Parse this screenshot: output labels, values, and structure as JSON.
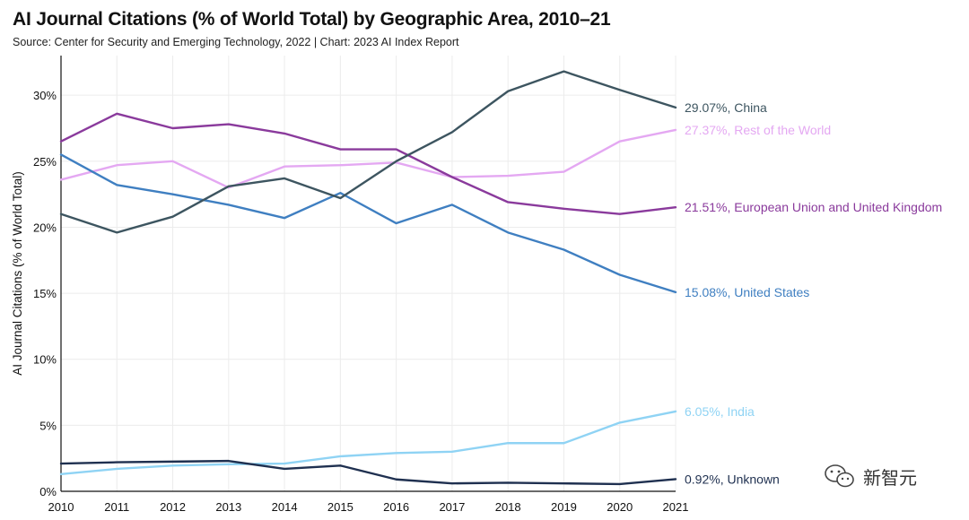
{
  "header": {
    "title": "AI Journal Citations (% of World Total) by Geographic Area, 2010–21",
    "subtitle": "Source: Center for Security and Emerging Technology, 2022 | Chart: 2023 AI Index Report"
  },
  "watermark": {
    "text": "新智元",
    "icon": "wechat-logo-icon"
  },
  "chart_data": {
    "type": "line",
    "title": "AI Journal Citations (% of World Total) by Geographic Area, 2010–21",
    "xlabel": "",
    "ylabel": "AI Journal Citations (% of World Total)",
    "x": [
      2010,
      2011,
      2012,
      2013,
      2014,
      2015,
      2016,
      2017,
      2018,
      2019,
      2020,
      2021
    ],
    "ylim": [
      0,
      33
    ],
    "yticks": [
      0,
      5,
      10,
      15,
      20,
      25,
      30
    ],
    "ytick_labels": [
      "0%",
      "5%",
      "10%",
      "15%",
      "20%",
      "25%",
      "30%"
    ],
    "grid": true,
    "legend": "direct labels at line ends",
    "series": [
      {
        "name": "China",
        "label": "29.07%, China",
        "color": "#3d5560",
        "values": [
          21.0,
          19.6,
          20.8,
          23.1,
          23.7,
          22.2,
          25.0,
          27.2,
          30.3,
          31.8,
          30.4,
          29.07
        ]
      },
      {
        "name": "Rest of the World",
        "label": "27.37%, Rest of the World",
        "color": "#e4a8f2",
        "values": [
          23.6,
          24.7,
          25.0,
          23.0,
          24.6,
          24.7,
          24.9,
          23.8,
          23.9,
          24.2,
          26.5,
          27.37
        ]
      },
      {
        "name": "European Union and United Kingdom",
        "label": "21.51%, European Union and United Kingdom",
        "color": "#8a3a9c",
        "values": [
          26.5,
          28.6,
          27.5,
          27.8,
          27.1,
          25.9,
          25.9,
          23.8,
          21.9,
          21.4,
          21.0,
          21.51
        ]
      },
      {
        "name": "United States",
        "label": "15.08%, United States",
        "color": "#3f7fc1",
        "values": [
          25.5,
          23.2,
          22.5,
          21.7,
          20.7,
          22.6,
          20.3,
          21.7,
          19.6,
          18.3,
          16.4,
          15.08
        ]
      },
      {
        "name": "India",
        "label": "6.05%, India",
        "color": "#8fd3f4",
        "values": [
          1.3,
          1.7,
          1.95,
          2.05,
          2.1,
          2.65,
          2.9,
          3.0,
          3.65,
          3.65,
          5.2,
          6.05
        ]
      },
      {
        "name": "Unknown",
        "label": "0.92%, Unknown",
        "color": "#1f3050",
        "values": [
          2.1,
          2.2,
          2.25,
          2.3,
          1.7,
          1.95,
          0.9,
          0.6,
          0.65,
          0.6,
          0.55,
          0.92
        ]
      }
    ]
  }
}
